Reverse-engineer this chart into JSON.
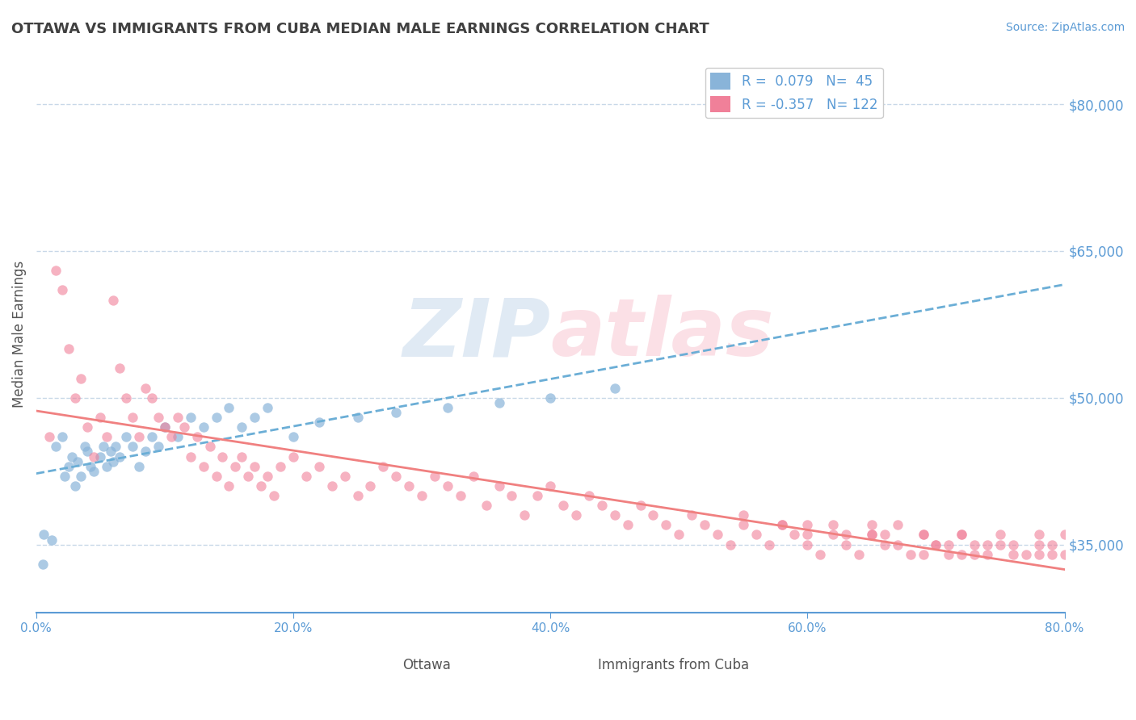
{
  "title": "OTTAWA VS IMMIGRANTS FROM CUBA MEDIAN MALE EARNINGS CORRELATION CHART",
  "source": "Source: ZipAtlas.com",
  "xlabel": "",
  "ylabel": "Median Male Earnings",
  "ytick_labels": [
    "$35,000",
    "$50,000",
    "$65,000",
    "$80,000"
  ],
  "ytick_values": [
    35000,
    50000,
    65000,
    80000
  ],
  "xtick_labels": [
    "0.0%",
    "20.0%",
    "40.0%",
    "60.0%",
    "80.0%"
  ],
  "xtick_values": [
    0.0,
    20.0,
    40.0,
    60.0,
    80.0
  ],
  "xmin": 0.0,
  "xmax": 80.0,
  "ymin": 28000,
  "ymax": 85000,
  "ottawa_color": "#a8c4e0",
  "ottawa_dot_color": "#89b4d9",
  "cuba_color": "#f4a7b9",
  "cuba_dot_color": "#f08099",
  "trend_blue_color": "#6baed6",
  "trend_pink_color": "#f08080",
  "R_ottawa": 0.079,
  "N_ottawa": 45,
  "R_cuba": -0.357,
  "N_cuba": 122,
  "legend_label_ottawa": "Ottawa",
  "legend_label_cuba": "Immigrants from Cuba",
  "grid_color": "#c8d8e8",
  "axis_color": "#5b9bd5",
  "title_color": "#404040",
  "watermark": "ZIPAtlas",
  "watermark_color_blue": "#a8c4e0",
  "watermark_color_pink": "#f4a7b9",
  "ottawa_x": [
    0.5,
    0.6,
    1.2,
    1.5,
    2.0,
    2.2,
    2.5,
    2.8,
    3.0,
    3.2,
    3.5,
    3.8,
    4.0,
    4.2,
    4.5,
    5.0,
    5.2,
    5.5,
    5.8,
    6.0,
    6.2,
    6.5,
    7.0,
    7.5,
    8.0,
    8.5,
    9.0,
    9.5,
    10.0,
    11.0,
    12.0,
    13.0,
    14.0,
    15.0,
    16.0,
    17.0,
    18.0,
    20.0,
    22.0,
    25.0,
    28.0,
    32.0,
    36.0,
    40.0,
    45.0
  ],
  "ottawa_y": [
    33000,
    36000,
    35500,
    45000,
    46000,
    42000,
    43000,
    44000,
    41000,
    43500,
    42000,
    45000,
    44500,
    43000,
    42500,
    44000,
    45000,
    43000,
    44500,
    43500,
    45000,
    44000,
    46000,
    45000,
    43000,
    44500,
    46000,
    45000,
    47000,
    46000,
    48000,
    47000,
    48000,
    49000,
    47000,
    48000,
    49000,
    46000,
    47500,
    48000,
    48500,
    49000,
    49500,
    50000,
    51000
  ],
  "cuba_x": [
    1.0,
    1.5,
    2.0,
    2.5,
    3.0,
    3.5,
    4.0,
    4.5,
    5.0,
    5.5,
    6.0,
    6.5,
    7.0,
    7.5,
    8.0,
    8.5,
    9.0,
    9.5,
    10.0,
    10.5,
    11.0,
    11.5,
    12.0,
    12.5,
    13.0,
    13.5,
    14.0,
    14.5,
    15.0,
    15.5,
    16.0,
    16.5,
    17.0,
    17.5,
    18.0,
    18.5,
    19.0,
    20.0,
    21.0,
    22.0,
    23.0,
    24.0,
    25.0,
    26.0,
    27.0,
    28.0,
    29.0,
    30.0,
    31.0,
    32.0,
    33.0,
    34.0,
    35.0,
    36.0,
    37.0,
    38.0,
    39.0,
    40.0,
    41.0,
    42.0,
    43.0,
    44.0,
    45.0,
    46.0,
    47.0,
    48.0,
    49.0,
    50.0,
    51.0,
    52.0,
    53.0,
    54.0,
    55.0,
    56.0,
    57.0,
    58.0,
    59.0,
    60.0,
    61.0,
    62.0,
    63.0,
    64.0,
    65.0,
    66.0,
    67.0,
    68.0,
    69.0,
    70.0,
    71.0,
    72.0,
    73.0,
    74.0,
    75.0,
    76.0,
    77.0,
    78.0,
    79.0,
    80.0,
    65.0,
    70.0,
    72.0,
    74.0,
    76.0,
    78.0,
    79.0,
    80.0,
    60.0,
    63.0,
    66.0,
    69.0,
    72.0,
    75.0,
    78.0,
    55.0,
    58.0,
    60.0,
    62.0,
    65.0,
    67.0,
    69.0,
    71.0,
    73.0
  ],
  "cuba_y": [
    46000,
    63000,
    61000,
    55000,
    50000,
    52000,
    47000,
    44000,
    48000,
    46000,
    60000,
    53000,
    50000,
    48000,
    46000,
    51000,
    50000,
    48000,
    47000,
    46000,
    48000,
    47000,
    44000,
    46000,
    43000,
    45000,
    42000,
    44000,
    41000,
    43000,
    44000,
    42000,
    43000,
    41000,
    42000,
    40000,
    43000,
    44000,
    42000,
    43000,
    41000,
    42000,
    40000,
    41000,
    43000,
    42000,
    41000,
    40000,
    42000,
    41000,
    40000,
    42000,
    39000,
    41000,
    40000,
    38000,
    40000,
    41000,
    39000,
    38000,
    40000,
    39000,
    38000,
    37000,
    39000,
    38000,
    37000,
    36000,
    38000,
    37000,
    36000,
    35000,
    37000,
    36000,
    35000,
    37000,
    36000,
    35000,
    34000,
    36000,
    35000,
    34000,
    37000,
    36000,
    35000,
    34000,
    36000,
    35000,
    34000,
    36000,
    35000,
    34000,
    36000,
    35000,
    34000,
    35000,
    34000,
    36000,
    36000,
    35000,
    34000,
    35000,
    34000,
    36000,
    35000,
    34000,
    37000,
    36000,
    35000,
    34000,
    36000,
    35000,
    34000,
    38000,
    37000,
    36000,
    37000,
    36000,
    37000,
    36000,
    35000,
    34000
  ]
}
